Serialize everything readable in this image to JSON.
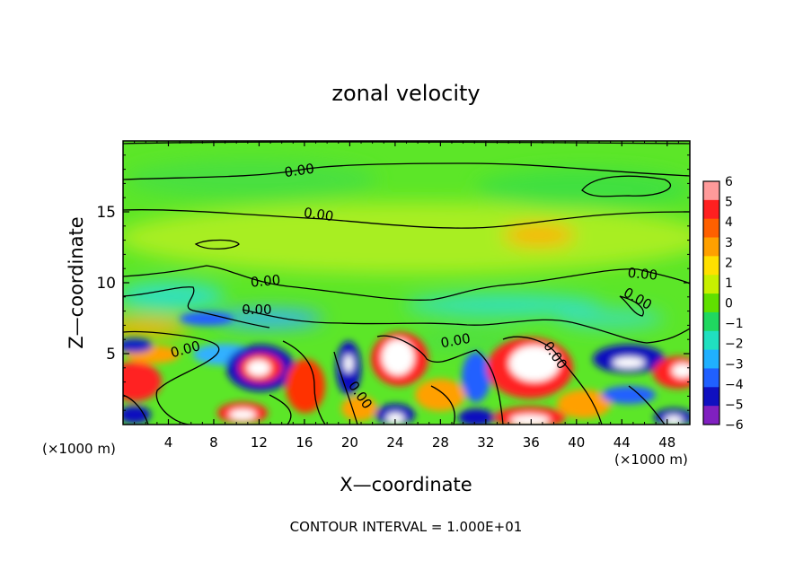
{
  "chart_data": {
    "type": "heatmap",
    "title": "zonal velocity",
    "xlabel": "X—coordinate",
    "ylabel": "Z—coordinate",
    "x_unit_left": "(×1000 m)",
    "x_unit_right": "(×1000 m)",
    "xlim": [
      0,
      50
    ],
    "ylim": [
      0,
      20
    ],
    "x_ticks": [
      4,
      8,
      12,
      16,
      20,
      24,
      28,
      32,
      36,
      40,
      44,
      48
    ],
    "y_ticks": [
      5,
      10,
      15
    ],
    "colorbar": {
      "levels": [
        6,
        5,
        4,
        3,
        2,
        1,
        0,
        -1,
        -2,
        -3,
        -4,
        -5,
        -6
      ],
      "labels": [
        "6",
        "5",
        "4",
        "3",
        "2",
        "1",
        "0",
        "−1",
        "−2",
        "−3",
        "−4",
        "−5",
        "−6"
      ],
      "colors": [
        "#ff9a9a",
        "#ff2020",
        "#ff6000",
        "#ffa000",
        "#ffe000",
        "#c8f000",
        "#60e000",
        "#20d860",
        "#20e0c0",
        "#20b0ff",
        "#2060ff",
        "#1010c0",
        "#8020c0"
      ]
    },
    "contour_labels": [
      {
        "text": "0.00",
        "x": 15.6,
        "z": 17.6,
        "angle": -8
      },
      {
        "text": "0.00",
        "x": 17.2,
        "z": 14.5,
        "angle": 8
      },
      {
        "text": "0.00",
        "x": 12.6,
        "z": 9.8,
        "angle": -5
      },
      {
        "text": "0.00",
        "x": 11.8,
        "z": 7.8,
        "angle": 0
      },
      {
        "text": "0.00",
        "x": 5.6,
        "z": 5.0,
        "angle": -15
      },
      {
        "text": "0.00",
        "x": 29.4,
        "z": 5.6,
        "angle": -10
      },
      {
        "text": "0.00",
        "x": 37.8,
        "z": 4.7,
        "angle": 55
      },
      {
        "text": "0.00",
        "x": 20.6,
        "z": 1.9,
        "angle": 55
      },
      {
        "text": "0.00",
        "x": 45.8,
        "z": 10.3,
        "angle": 5
      },
      {
        "text": "0.00",
        "x": 45.2,
        "z": 8.6,
        "angle": 30
      }
    ],
    "contour_interval_label": "CONTOUR INTERVAL = 1.000E+01"
  }
}
